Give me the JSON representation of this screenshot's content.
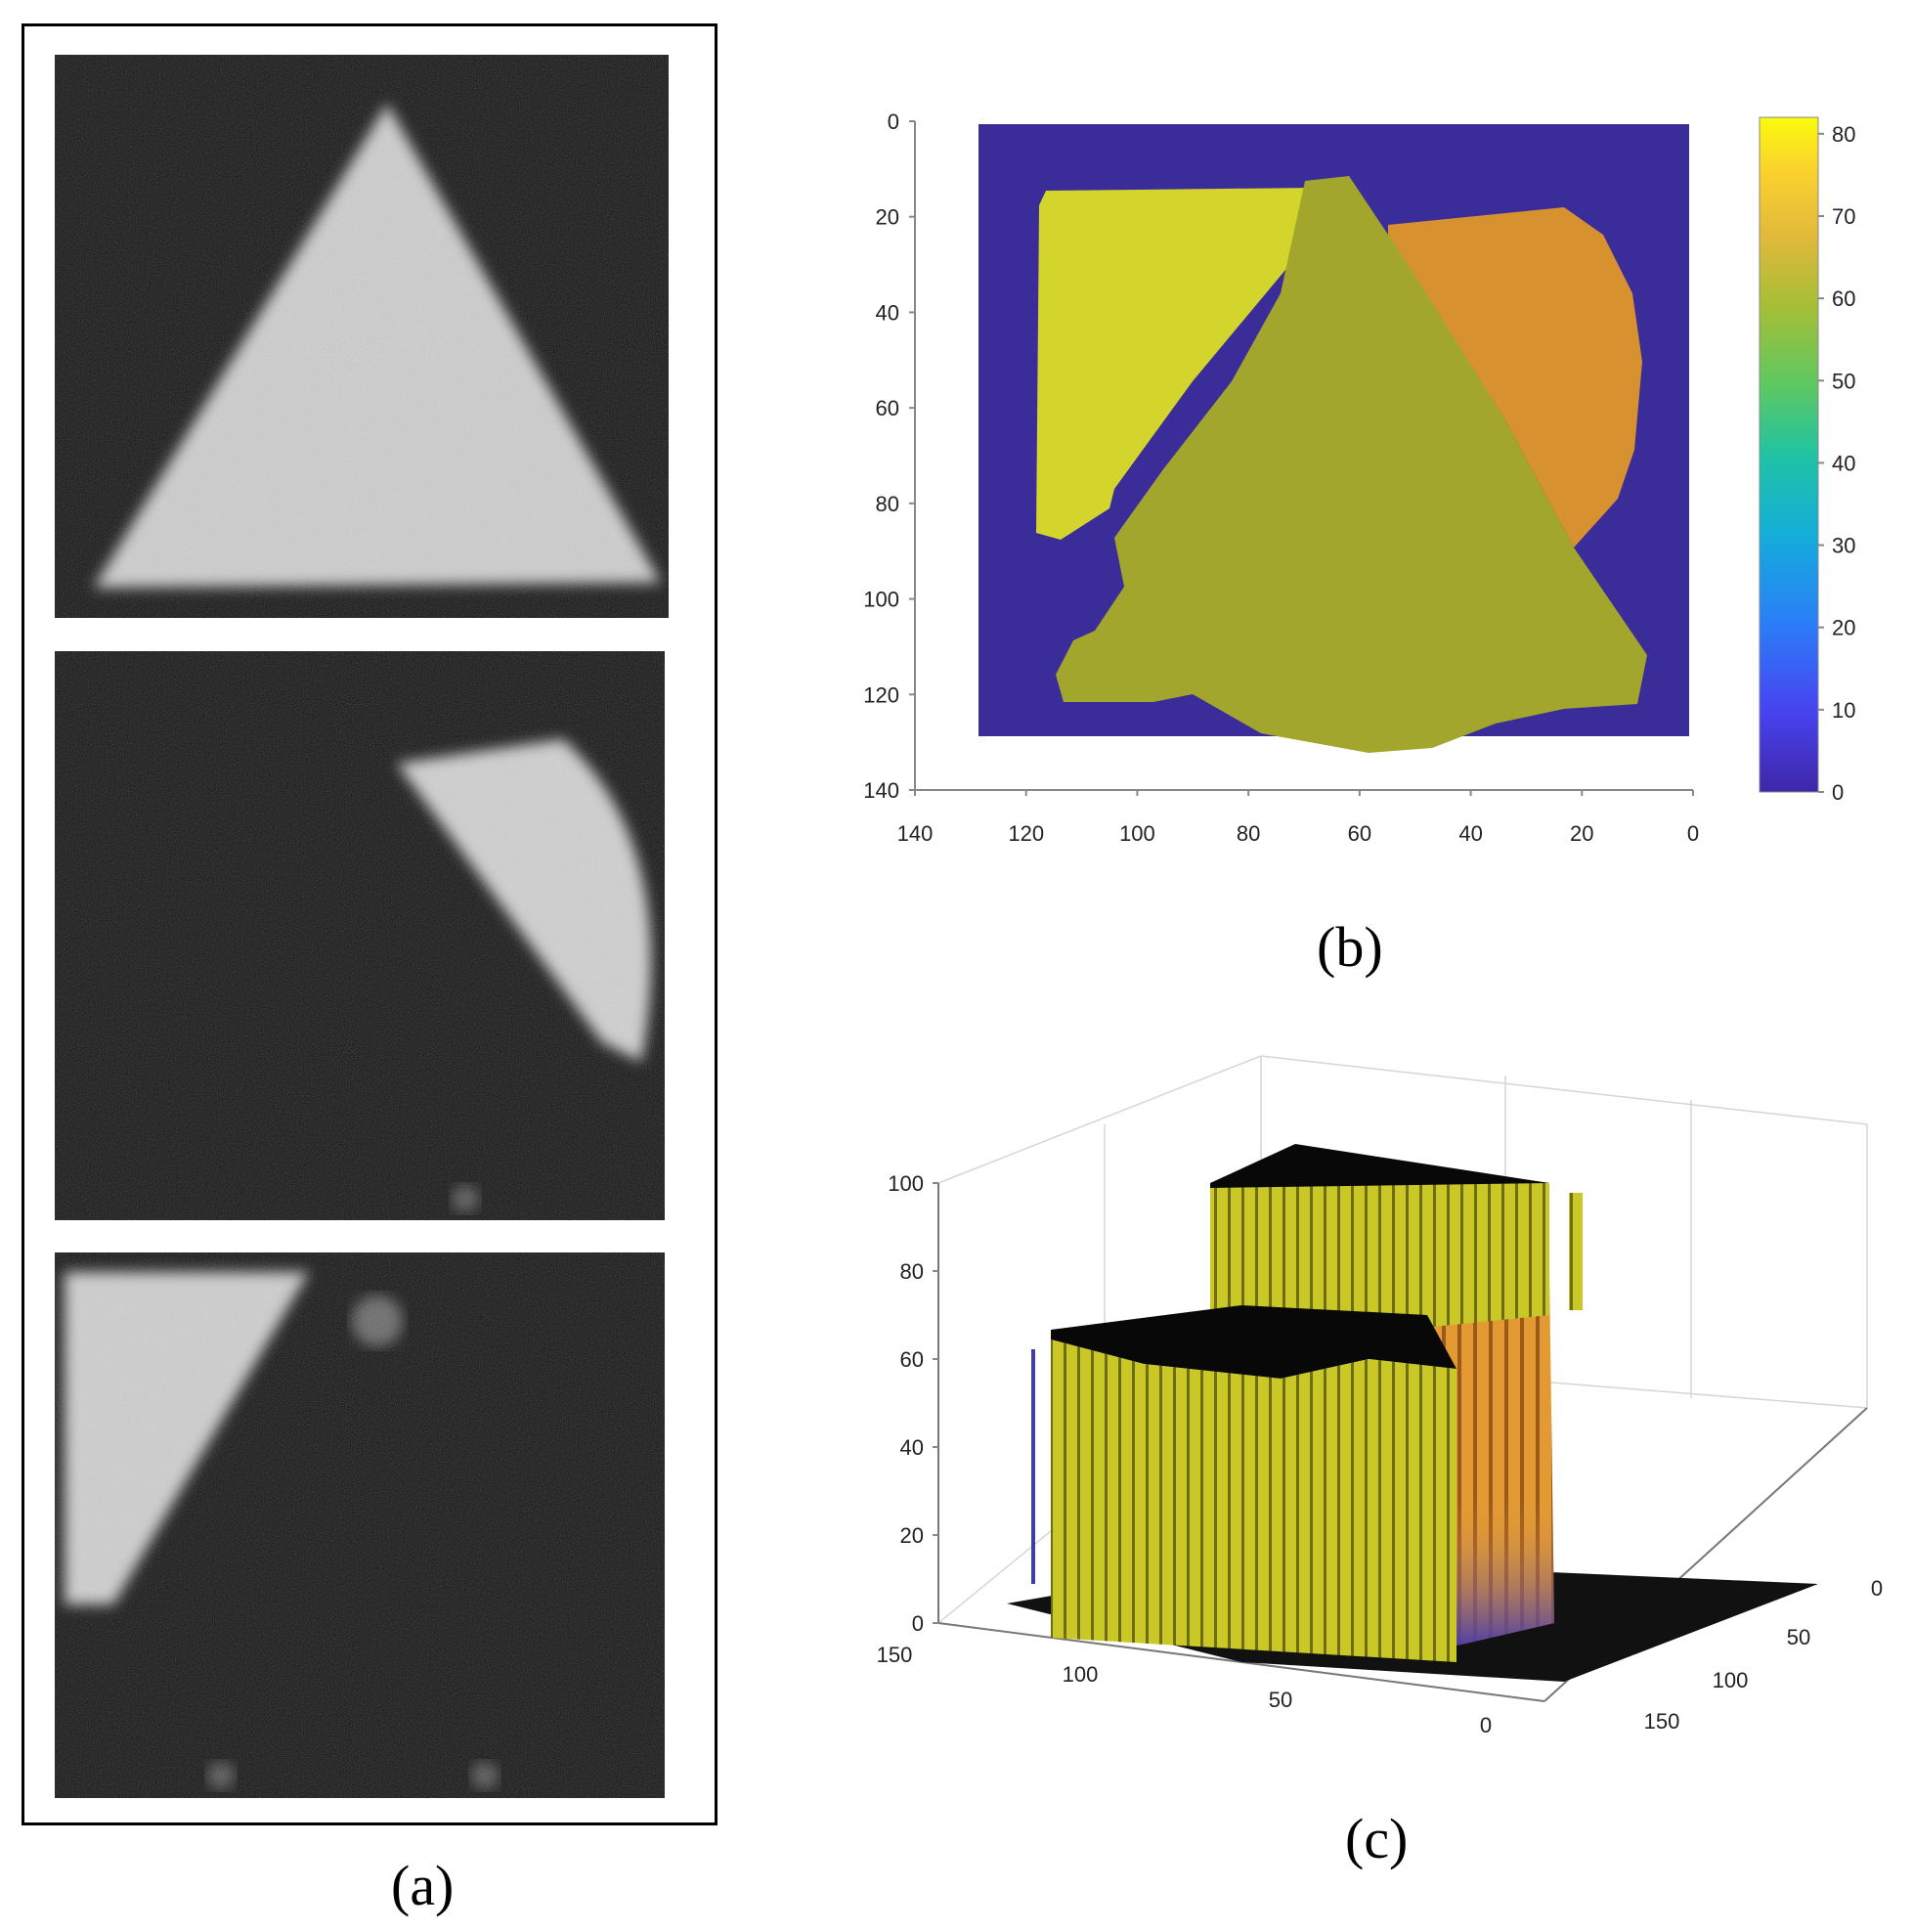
{
  "captions": {
    "a": "(a)",
    "b": "(b)",
    "c": "(c)"
  },
  "colors": {
    "colormap": [
      "#3e26a8",
      "#4743f0",
      "#2b7ef8",
      "#14adda",
      "#21c3a3",
      "#5cc863",
      "#a6be36",
      "#e0b93b",
      "#fbd12e",
      "#f9fb0e"
    ],
    "background_level": "#3a2d9a",
    "region_left": "#d8d62a",
    "region_triangle": "#a3a82a",
    "region_right": "#e09a2e"
  },
  "chart_data": [
    {
      "id": "b",
      "type": "heatmap",
      "xlabel": "",
      "ylabel": "",
      "xlim": [
        140,
        0
      ],
      "ylim": [
        0,
        140
      ],
      "x_ticks": [
        "140",
        "120",
        "100",
        "80",
        "60",
        "40",
        "20",
        "0"
      ],
      "y_ticks": [
        "0",
        "20",
        "40",
        "60",
        "80",
        "100",
        "120",
        "140"
      ],
      "colorbar": {
        "range": [
          0,
          82
        ],
        "ticks": [
          "80",
          "70",
          "60",
          "50",
          "40",
          "30",
          "20",
          "10",
          "0"
        ]
      },
      "grid_extent": {
        "x": [
          0,
          129
        ],
        "y": [
          0,
          128
        ]
      },
      "regions": [
        {
          "shape": "rounded-rectangle-cut",
          "value": 78
        },
        {
          "shape": "triangle",
          "value": 66
        },
        {
          "shape": "quarter-disc",
          "value": 70
        }
      ],
      "background_value": 0
    },
    {
      "id": "c",
      "type": "surface",
      "xlabel": "",
      "ylabel": "",
      "zlabel": "",
      "zlim": [
        0,
        100
      ],
      "z_ticks": [
        "0",
        "20",
        "40",
        "60",
        "80",
        "100"
      ],
      "x_ticks": [
        "150",
        "100",
        "50",
        "0"
      ],
      "y_ticks": [
        "0",
        "50",
        "100",
        "150"
      ],
      "plateaus": [
        {
          "region": "left",
          "height": 78
        },
        {
          "region": "triangle",
          "height": 66
        },
        {
          "region": "right",
          "height": 70
        }
      ]
    }
  ]
}
